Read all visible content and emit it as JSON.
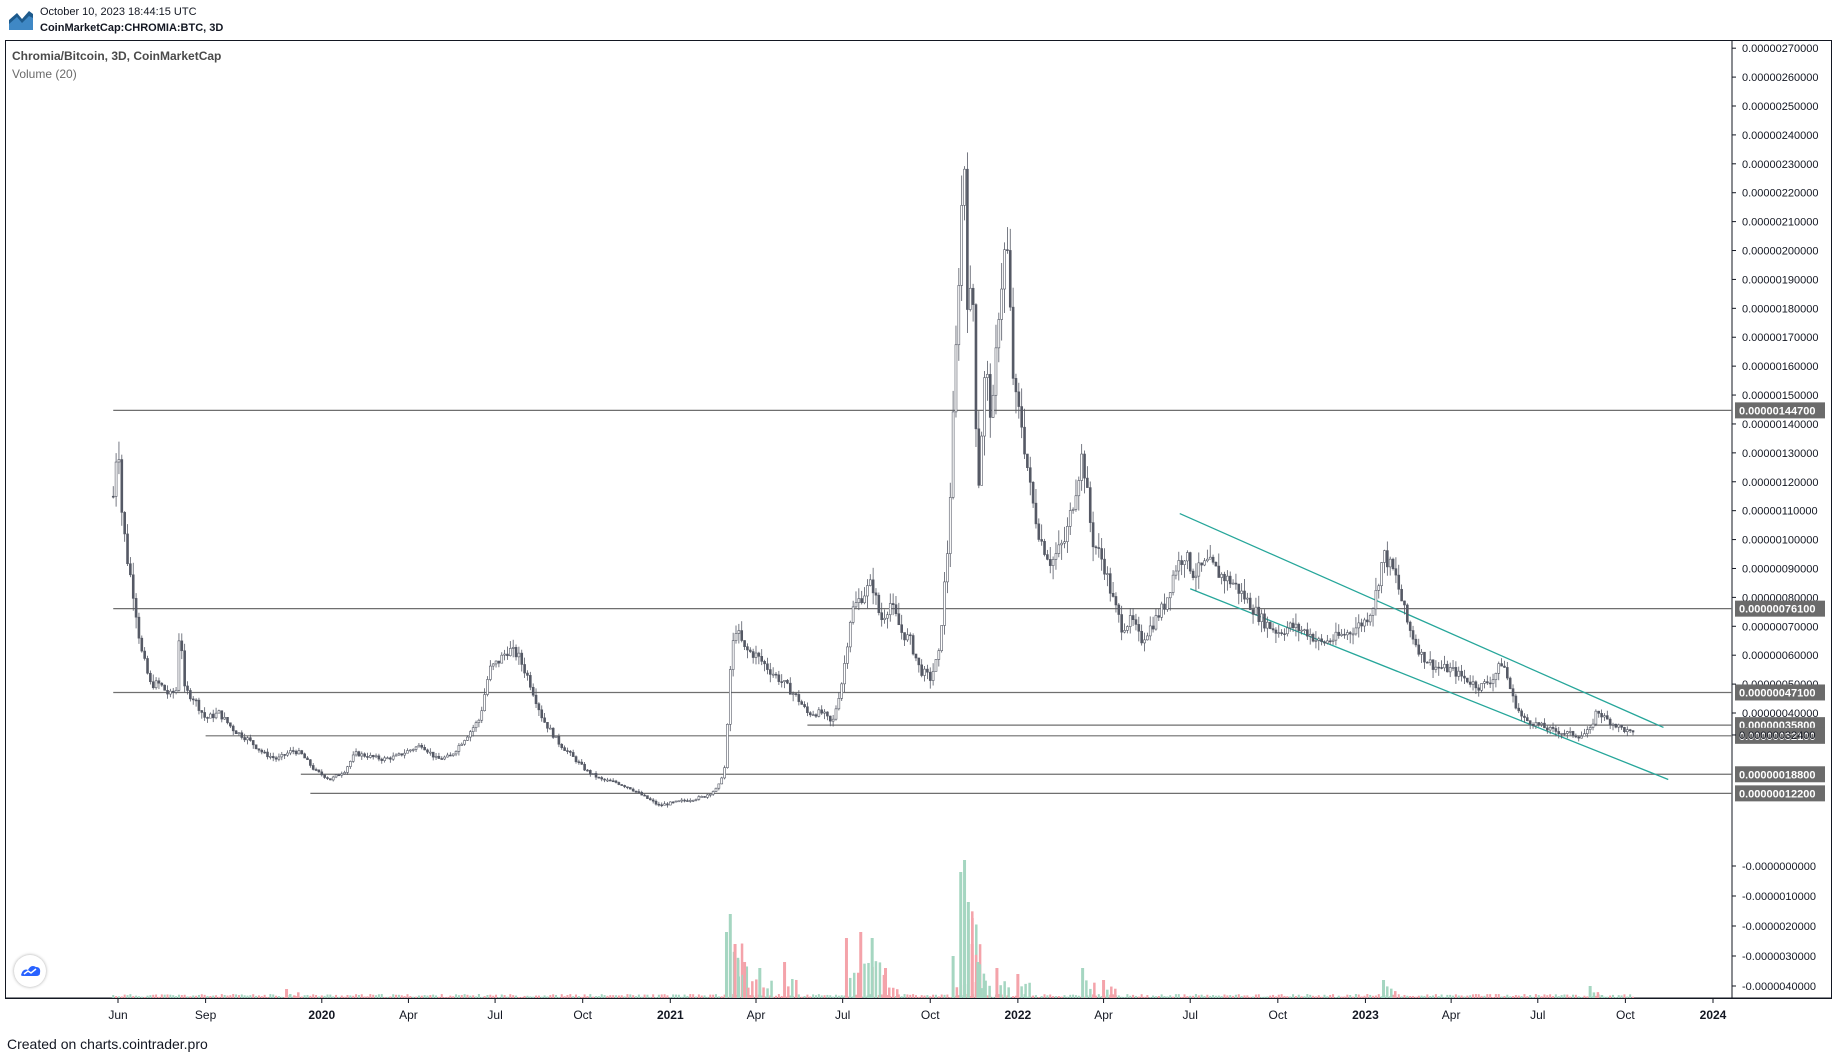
{
  "header": {
    "timestamp": "October 10, 2023 18:44:15 UTC",
    "symbol": "CoinMarketCap:CHROMIA:BTC, 3D"
  },
  "legend": {
    "title": "Chromia/Bitcoin, 3D, CoinMarketCap",
    "volume": "Volume (20)"
  },
  "footer": {
    "text": "Created on charts.cointrader.pro"
  },
  "colors": {
    "up": "#a5d6c1",
    "down": "#f4a3aa",
    "candle": "#555965",
    "channel": "#26a69a",
    "level": "#6f6f6f",
    "badge": "#6b6b6b"
  },
  "chart_data": {
    "type": "candlestick",
    "title": "Chromia/Bitcoin, 3D, CoinMarketCap",
    "indicator": "Volume (20)",
    "y_axis": {
      "ticks": [
        "0.00000270000",
        "0.00000260000",
        "0.00000250000",
        "0.00000240000",
        "0.00000230000",
        "0.00000220000",
        "0.00000210000",
        "0.00000200000",
        "0.00000190000",
        "0.00000180000",
        "0.00000170000",
        "0.00000160000",
        "0.00000150000",
        "0.00000140000",
        "0.00000130000",
        "0.00000120000",
        "0.00000110000",
        "0.00000100000",
        "0.00000090000",
        "0.00000080000",
        "0.00000070000",
        "0.00000060000",
        "0.00000050000",
        "0.00000040000"
      ],
      "tick_values": [
        2.7,
        2.6,
        2.5,
        2.4,
        2.3,
        2.2,
        2.1,
        2.0,
        1.9,
        1.8,
        1.7,
        1.6,
        1.5,
        1.4,
        1.3,
        1.2,
        1.1,
        1.0,
        0.9,
        0.8,
        0.7,
        0.6,
        0.5,
        0.4
      ],
      "neg_ticks": [
        "-0.0000000000",
        "-0.0000010000",
        "-0.0000020000",
        "-0.0000030000",
        "-0.0000040000"
      ]
    },
    "x_axis": {
      "ticks": [
        "Jun",
        "Sep",
        "2020",
        "Apr",
        "Jul",
        "Oct",
        "2021",
        "Apr",
        "Jul",
        "Oct",
        "2022",
        "Apr",
        "Jul",
        "Oct",
        "2023",
        "Apr",
        "Jul",
        "Oct",
        "2024"
      ],
      "tick_dates": [
        "2019-06-01",
        "2019-09-01",
        "2020-01-01",
        "2020-04-01",
        "2020-07-01",
        "2020-10-01",
        "2021-01-01",
        "2021-04-01",
        "2021-07-01",
        "2021-10-01",
        "2022-01-01",
        "2022-04-01",
        "2022-07-01",
        "2022-10-01",
        "2023-01-01",
        "2023-04-01",
        "2023-07-01",
        "2023-10-01",
        "2024-01-01"
      ],
      "bold": [
        "2020",
        "2021",
        "2022",
        "2023",
        "2024"
      ]
    },
    "levels": [
      {
        "label": "0.00000144700",
        "value": 1.447,
        "from": "2019-05-27"
      },
      {
        "label": "0.00000076100",
        "value": 0.761,
        "from": "2019-05-27"
      },
      {
        "label": "0.00000047100",
        "value": 0.471,
        "from": "2019-05-27"
      },
      {
        "label": "0.00000035800",
        "value": 0.358,
        "from": "2021-05-25"
      },
      {
        "label": "0.00000032100",
        "value": 0.321,
        "from": "2019-09-01"
      },
      {
        "label": "0.00000018800",
        "value": 0.188,
        "from": "2019-12-10"
      },
      {
        "label": "0.00000012200",
        "value": 0.122,
        "from": "2019-12-20"
      }
    ],
    "last_price": {
      "label": "0.00000032400",
      "value": 0.324
    },
    "channel": {
      "upper": [
        [
          "2022-06-20",
          1.09
        ],
        [
          "2023-11-10",
          0.35
        ]
      ],
      "lower": [
        [
          "2022-07-01",
          0.83
        ],
        [
          "2023-11-15",
          0.17
        ]
      ]
    },
    "price_path": [
      [
        "2019-05-27",
        1.15
      ],
      [
        "2019-06-01",
        1.38
      ],
      [
        "2019-06-05",
        1.1
      ],
      [
        "2019-06-10",
        0.95
      ],
      [
        "2019-06-18",
        0.8
      ],
      [
        "2019-06-25",
        0.62
      ],
      [
        "2019-07-05",
        0.5
      ],
      [
        "2019-07-15",
        0.5
      ],
      [
        "2019-07-25",
        0.46
      ],
      [
        "2019-08-01",
        0.48
      ],
      [
        "2019-08-05",
        0.72
      ],
      [
        "2019-08-10",
        0.48
      ],
      [
        "2019-08-20",
        0.45
      ],
      [
        "2019-09-01",
        0.38
      ],
      [
        "2019-09-15",
        0.4
      ],
      [
        "2019-10-01",
        0.34
      ],
      [
        "2019-10-15",
        0.31
      ],
      [
        "2019-11-01",
        0.26
      ],
      [
        "2019-11-15",
        0.24
      ],
      [
        "2019-12-01",
        0.27
      ],
      [
        "2019-12-10",
        0.26
      ],
      [
        "2019-12-25",
        0.2
      ],
      [
        "2020-01-10",
        0.17
      ],
      [
        "2020-01-25",
        0.2
      ],
      [
        "2020-02-05",
        0.26
      ],
      [
        "2020-02-20",
        0.25
      ],
      [
        "2020-03-05",
        0.24
      ],
      [
        "2020-03-20",
        0.25
      ],
      [
        "2020-04-01",
        0.27
      ],
      [
        "2020-04-15",
        0.29
      ],
      [
        "2020-05-01",
        0.24
      ],
      [
        "2020-05-15",
        0.25
      ],
      [
        "2020-06-01",
        0.32
      ],
      [
        "2020-06-15",
        0.38
      ],
      [
        "2020-06-25",
        0.55
      ],
      [
        "2020-07-05",
        0.58
      ],
      [
        "2020-07-15",
        0.62
      ],
      [
        "2020-07-25",
        0.6
      ],
      [
        "2020-08-05",
        0.52
      ],
      [
        "2020-08-20",
        0.38
      ],
      [
        "2020-09-05",
        0.3
      ],
      [
        "2020-09-20",
        0.25
      ],
      [
        "2020-10-05",
        0.2
      ],
      [
        "2020-10-20",
        0.17
      ],
      [
        "2020-11-05",
        0.16
      ],
      [
        "2020-11-20",
        0.14
      ],
      [
        "2020-12-05",
        0.11
      ],
      [
        "2020-12-20",
        0.08
      ],
      [
        "2021-01-05",
        0.09
      ],
      [
        "2021-01-20",
        0.1
      ],
      [
        "2021-02-05",
        0.11
      ],
      [
        "2021-02-20",
        0.14
      ],
      [
        "2021-02-28",
        0.22
      ],
      [
        "2021-03-05",
        0.55
      ],
      [
        "2021-03-10",
        0.7
      ],
      [
        "2021-03-20",
        0.62
      ],
      [
        "2021-04-01",
        0.6
      ],
      [
        "2021-04-15",
        0.55
      ],
      [
        "2021-05-01",
        0.5
      ],
      [
        "2021-05-15",
        0.45
      ],
      [
        "2021-05-25",
        0.4
      ],
      [
        "2021-06-10",
        0.4
      ],
      [
        "2021-06-20",
        0.36
      ],
      [
        "2021-07-01",
        0.52
      ],
      [
        "2021-07-10",
        0.75
      ],
      [
        "2021-07-20",
        0.8
      ],
      [
        "2021-08-01",
        0.85
      ],
      [
        "2021-08-10",
        0.72
      ],
      [
        "2021-08-20",
        0.78
      ],
      [
        "2021-09-01",
        0.68
      ],
      [
        "2021-09-10",
        0.65
      ],
      [
        "2021-09-20",
        0.55
      ],
      [
        "2021-10-01",
        0.52
      ],
      [
        "2021-10-10",
        0.6
      ],
      [
        "2021-10-20",
        1.0
      ],
      [
        "2021-10-28",
        1.65
      ],
      [
        "2021-11-02",
        2.1
      ],
      [
        "2021-11-06",
        2.3
      ],
      [
        "2021-11-10",
        1.7
      ],
      [
        "2021-11-14",
        1.95
      ],
      [
        "2021-11-20",
        1.15
      ],
      [
        "2021-11-28",
        1.6
      ],
      [
        "2021-12-05",
        1.4
      ],
      [
        "2021-12-12",
        1.8
      ],
      [
        "2021-12-20",
        2.05
      ],
      [
        "2021-12-28",
        1.5
      ],
      [
        "2022-01-05",
        1.4
      ],
      [
        "2022-01-15",
        1.15
      ],
      [
        "2022-01-25",
        1.0
      ],
      [
        "2022-02-05",
        0.92
      ],
      [
        "2022-02-20",
        1.0
      ],
      [
        "2022-03-01",
        1.15
      ],
      [
        "2022-03-10",
        1.3
      ],
      [
        "2022-03-20",
        1.0
      ],
      [
        "2022-04-01",
        0.92
      ],
      [
        "2022-04-10",
        0.8
      ],
      [
        "2022-04-20",
        0.7
      ],
      [
        "2022-05-01",
        0.72
      ],
      [
        "2022-05-10",
        0.65
      ],
      [
        "2022-05-25",
        0.72
      ],
      [
        "2022-06-05",
        0.78
      ],
      [
        "2022-06-15",
        0.9
      ],
      [
        "2022-06-25",
        0.95
      ],
      [
        "2022-07-05",
        0.88
      ],
      [
        "2022-07-20",
        0.92
      ],
      [
        "2022-08-01",
        0.88
      ],
      [
        "2022-08-15",
        0.85
      ],
      [
        "2022-09-01",
        0.78
      ],
      [
        "2022-09-15",
        0.72
      ],
      [
        "2022-10-01",
        0.68
      ],
      [
        "2022-10-15",
        0.7
      ],
      [
        "2022-11-01",
        0.68
      ],
      [
        "2022-11-15",
        0.64
      ],
      [
        "2022-12-01",
        0.66
      ],
      [
        "2022-12-15",
        0.68
      ],
      [
        "2023-01-01",
        0.72
      ],
      [
        "2023-01-10",
        0.78
      ],
      [
        "2023-01-20",
        0.95
      ],
      [
        "2023-02-01",
        0.88
      ],
      [
        "2023-02-15",
        0.7
      ],
      [
        "2023-03-01",
        0.6
      ],
      [
        "2023-03-15",
        0.56
      ],
      [
        "2023-04-01",
        0.55
      ],
      [
        "2023-04-15",
        0.52
      ],
      [
        "2023-05-01",
        0.49
      ],
      [
        "2023-05-15",
        0.52
      ],
      [
        "2023-05-25",
        0.58
      ],
      [
        "2023-06-05",
        0.45
      ],
      [
        "2023-06-15",
        0.38
      ],
      [
        "2023-07-01",
        0.36
      ],
      [
        "2023-07-15",
        0.34
      ],
      [
        "2023-08-01",
        0.33
      ],
      [
        "2023-08-15",
        0.32
      ],
      [
        "2023-08-25",
        0.34
      ],
      [
        "2023-09-01",
        0.41
      ],
      [
        "2023-09-10",
        0.38
      ],
      [
        "2023-09-20",
        0.36
      ],
      [
        "2023-10-01",
        0.34
      ],
      [
        "2023-10-10",
        0.324
      ]
    ],
    "volume_spikes": [
      [
        "2019-11-25",
        3,
        "down"
      ],
      [
        "2021-03-01",
        22,
        "up"
      ],
      [
        "2021-03-05",
        28,
        "up"
      ],
      [
        "2021-03-10",
        18,
        "down"
      ],
      [
        "2021-03-20",
        12,
        "down"
      ],
      [
        "2021-04-05",
        10,
        "up"
      ],
      [
        "2021-05-01",
        12,
        "down"
      ],
      [
        "2021-07-05",
        20,
        "down"
      ],
      [
        "2021-07-20",
        22,
        "down"
      ],
      [
        "2021-08-01",
        20,
        "up"
      ],
      [
        "2021-08-15",
        10,
        "down"
      ],
      [
        "2021-10-25",
        14,
        "up"
      ],
      [
        "2021-11-02",
        42,
        "up"
      ],
      [
        "2021-11-06",
        46,
        "up"
      ],
      [
        "2021-11-10",
        32,
        "up"
      ],
      [
        "2021-11-14",
        18,
        "down"
      ],
      [
        "2021-11-20",
        12,
        "up"
      ],
      [
        "2021-12-10",
        10,
        "down"
      ],
      [
        "2022-01-01",
        8,
        "down"
      ],
      [
        "2022-03-10",
        10,
        "up"
      ],
      [
        "2022-04-01",
        6,
        "down"
      ],
      [
        "2023-01-20",
        6,
        "up"
      ],
      [
        "2023-08-25",
        4,
        "up"
      ]
    ]
  }
}
